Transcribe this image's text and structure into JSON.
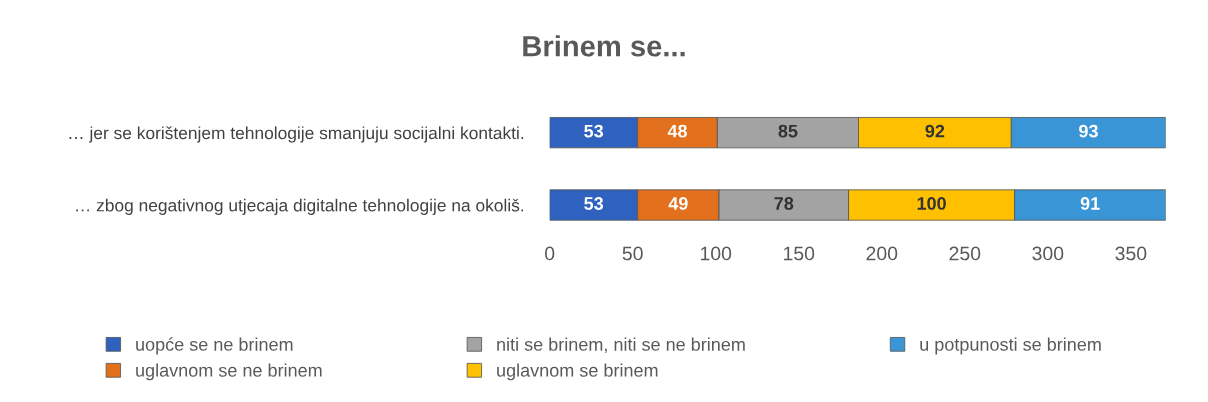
{
  "chart_data": {
    "type": "bar",
    "orientation": "horizontal",
    "stacked": true,
    "title": "Brinem se...",
    "categories": [
      "… jer se korištenjem tehnologije smanjuju socijalni kontakti.",
      "… zbog negativnog utjecaja digitalne tehnologije na okoliš."
    ],
    "series": [
      {
        "name": "uopće se ne brinem",
        "color": "#2f62be",
        "values": [
          53,
          53
        ]
      },
      {
        "name": "uglavnom se ne brinem",
        "color": "#e2701c",
        "values": [
          48,
          49
        ]
      },
      {
        "name": "niti se brinem, niti se ne brinem",
        "color": "#a3a3a3",
        "values": [
          85,
          78
        ]
      },
      {
        "name": "uglavnom se brinem",
        "color": "#ffc000",
        "values": [
          92,
          100
        ]
      },
      {
        "name": "u potpunosti se brinem",
        "color": "#3a95d6",
        "values": [
          93,
          91
        ]
      }
    ],
    "xlim": [
      0,
      371
    ],
    "xticks": [
      0,
      50,
      100,
      150,
      200,
      250,
      300,
      350
    ],
    "data_labels": true,
    "grid": false,
    "legend": "bottom"
  }
}
